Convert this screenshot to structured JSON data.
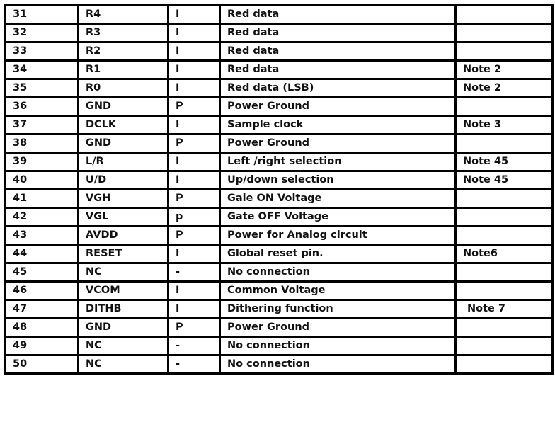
{
  "rows": [
    {
      "pin": "31",
      "symbol": "R4",
      "io": "I",
      "function": "Red data",
      "remark": ""
    },
    {
      "pin": "32",
      "symbol": "R3",
      "io": "I",
      "function": "Red data",
      "remark": ""
    },
    {
      "pin": "33",
      "symbol": "R2",
      "io": "I",
      "function": "Red data",
      "remark": ""
    },
    {
      "pin": "34",
      "symbol": "R1",
      "io": "I",
      "function": "Red data",
      "remark": "Note 2"
    },
    {
      "pin": "35",
      "symbol": "R0",
      "io": "I",
      "function": "Red data (LSB)",
      "remark": "Note 2"
    },
    {
      "pin": "36",
      "symbol": "GND",
      "io": "P",
      "function": "Power Ground",
      "remark": ""
    },
    {
      "pin": "37",
      "symbol": "DCLK",
      "io": "I",
      "function": "Sample clock",
      "remark": "Note 3"
    },
    {
      "pin": "38",
      "symbol": "GND",
      "io": "P",
      "function": "Power Ground",
      "remark": ""
    },
    {
      "pin": "39",
      "symbol": "L/R",
      "io": "I",
      "function": "Left /right selection",
      "remark": "Note 45"
    },
    {
      "pin": "40",
      "symbol": "U/D",
      "io": "I",
      "function": "Up/down selection",
      "remark": "Note 45"
    },
    {
      "pin": "41",
      "symbol": "VGH",
      "io": "P",
      "function": "Gale ON Voltage",
      "remark": ""
    },
    {
      "pin": "42",
      "symbol": "VGL",
      "io": "p",
      "function": "Gate OFF Voltage",
      "remark": ""
    },
    {
      "pin": "43",
      "symbol": "AVDD",
      "io": "P",
      "function": "Power for Analog circuit",
      "remark": ""
    },
    {
      "pin": "44",
      "symbol": "RESET",
      "io": "I",
      "function": "Global reset pin.",
      "remark": "Note6"
    },
    {
      "pin": "45",
      "symbol": "NC",
      "io": "-",
      "function": "No connection",
      "remark": ""
    },
    {
      "pin": "46",
      "symbol": "VCOM",
      "io": "I",
      "function": "Common Voltage",
      "remark": ""
    },
    {
      "pin": "47",
      "symbol": "DITHB",
      "io": "I",
      "function": "Dithering function",
      "remark": "Note 7"
    },
    {
      "pin": "48",
      "symbol": "GND",
      "io": "P",
      "function": "Power Ground",
      "remark": ""
    },
    {
      "pin": "49",
      "symbol": "NC",
      "io": "-",
      "function": "No connection",
      "remark": ""
    },
    {
      "pin": "50",
      "symbol": "NC",
      "io": "-",
      "function": "No connection",
      "remark": ""
    }
  ]
}
